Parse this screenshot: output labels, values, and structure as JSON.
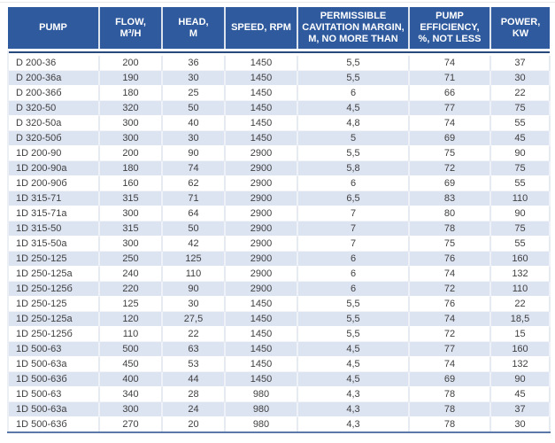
{
  "colors": {
    "header_bg": "#2f5a9d",
    "header_text": "#ffffff",
    "row_bg": "#ffffff",
    "row_alt_bg": "#dce3f1",
    "header_divider": "#26497e",
    "table_bottom_border": "#5a79a8",
    "cell_text": "#3f3f3f"
  },
  "table": {
    "columns": [
      {
        "id": "pump",
        "label": "PUMP"
      },
      {
        "id": "flow",
        "label": "FLOW,\nM³/H"
      },
      {
        "id": "head",
        "label": "HEAD,\nM"
      },
      {
        "id": "speed",
        "label": "SPEED, RPM"
      },
      {
        "id": "cavitation",
        "label": "PERMISSIBLE\nCAVITATION MARGIN,\nM, NO MORE THAN"
      },
      {
        "id": "efficiency",
        "label": "PUMP\nEFFICIENCY,\n%, NOT LESS"
      },
      {
        "id": "power",
        "label": "POWER,\nKW"
      }
    ],
    "rows": [
      [
        "D 200-36",
        "200",
        "36",
        "1450",
        "5,5",
        "74",
        "37"
      ],
      [
        "D 200-36a",
        "190",
        "30",
        "1450",
        "5,5",
        "71",
        "30"
      ],
      [
        "D 200-36б",
        "180",
        "25",
        "1450",
        "6",
        "66",
        "22"
      ],
      [
        "D 320-50",
        "320",
        "50",
        "1450",
        "4,5",
        "77",
        "75"
      ],
      [
        "D 320-50a",
        "300",
        "40",
        "1450",
        "4,8",
        "74",
        "55"
      ],
      [
        "D 320-50б",
        "300",
        "30",
        "1450",
        "5",
        "69",
        "45"
      ],
      [
        "1D 200-90",
        "200",
        "90",
        "2900",
        "5,5",
        "75",
        "90"
      ],
      [
        "1D 200-90a",
        "180",
        "74",
        "2900",
        "5,8",
        "72",
        "75"
      ],
      [
        "1D 200-90б",
        "160",
        "62",
        "2900",
        "6",
        "69",
        "55"
      ],
      [
        "1D 315-71",
        "315",
        "71",
        "2900",
        "6,5",
        "83",
        "110"
      ],
      [
        "1D 315-71a",
        "300",
        "64",
        "2900",
        "7",
        "80",
        "90"
      ],
      [
        "1D 315-50",
        "315",
        "50",
        "2900",
        "7",
        "78",
        "75"
      ],
      [
        "1D 315-50a",
        "300",
        "42",
        "2900",
        "7",
        "75",
        "55"
      ],
      [
        "1D 250-125",
        "250",
        "125",
        "2900",
        "6",
        "76",
        "160"
      ],
      [
        "1D 250-125a",
        "240",
        "110",
        "2900",
        "6",
        "74",
        "132"
      ],
      [
        "1D 250-125б",
        "220",
        "90",
        "2900",
        "6",
        "72",
        "110"
      ],
      [
        "1D 250-125",
        "125",
        "30",
        "1450",
        "5,5",
        "76",
        "22"
      ],
      [
        "1D 250-125a",
        "120",
        "27,5",
        "1450",
        "5,5",
        "74",
        "18,5"
      ],
      [
        "1D 250-125б",
        "110",
        "22",
        "1450",
        "5,5",
        "72",
        "15"
      ],
      [
        "1D 500-63",
        "500",
        "63",
        "1450",
        "4,5",
        "77",
        "160"
      ],
      [
        "1D 500-63a",
        "450",
        "53",
        "1450",
        "4,5",
        "74",
        "132"
      ],
      [
        "1D 500-63б",
        "400",
        "44",
        "1450",
        "4,5",
        "69",
        "90"
      ],
      [
        "1D 500-63",
        "340",
        "28",
        "980",
        "4,3",
        "78",
        "45"
      ],
      [
        "1D 500-63a",
        "300",
        "24",
        "980",
        "4,3",
        "78",
        "37"
      ],
      [
        "1D 500-63б",
        "270",
        "20",
        "980",
        "4,3",
        "78",
        "30"
      ]
    ]
  }
}
